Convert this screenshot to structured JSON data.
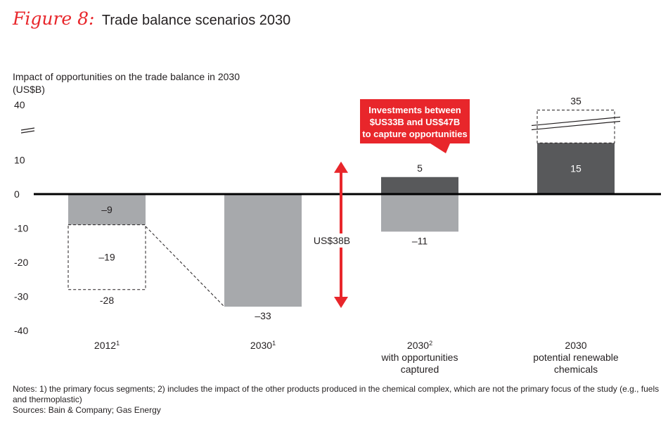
{
  "figure": {
    "label": "Figure 8:",
    "title": "Trade balance scenarios 2030"
  },
  "colors": {
    "light_bar": "#a7a9ac",
    "dark_bar": "#58595b",
    "accent": "#e8262b",
    "axis": "#000000"
  },
  "chart_data": {
    "type": "bar",
    "ylabel": [
      "Impact of opportunities on the trade balance in 2030",
      "(US$B)"
    ],
    "ylim": [
      -40,
      40
    ],
    "y_ticks": [
      "40",
      "10",
      "0",
      "-10",
      "-20",
      "-30",
      "-40"
    ],
    "axis_break": true,
    "categories": [
      {
        "lines": [
          "2012"
        ],
        "sup": "1"
      },
      {
        "lines": [
          "2030"
        ],
        "sup": "1"
      },
      {
        "lines": [
          "2030",
          "with opportunities",
          "captured"
        ],
        "sup": "2"
      },
      {
        "lines": [
          "2030",
          "potential renewable",
          "chemicals"
        ],
        "sup": ""
      }
    ],
    "bars": [
      {
        "category": 0,
        "type": "solid",
        "style": "light",
        "from": 0,
        "to": -9,
        "label": "–9",
        "label_pos": "inside"
      },
      {
        "category": 0,
        "type": "dashed",
        "from": -9,
        "to": -28,
        "label": "–19",
        "label_pos": "inside"
      },
      {
        "category": 0,
        "type": "marker",
        "value": -28,
        "label": "-28",
        "label_pos": "below"
      },
      {
        "category": 1,
        "type": "solid",
        "style": "light",
        "from": 0,
        "to": -33,
        "label": "–33",
        "label_pos": "below"
      },
      {
        "category": 2,
        "type": "solid",
        "style": "dark",
        "from": 0,
        "to": 5,
        "label": "5",
        "label_pos": "above"
      },
      {
        "category": 2,
        "type": "solid",
        "style": "light",
        "from": 0,
        "to": -11,
        "label": "–11",
        "label_pos": "below"
      },
      {
        "category": 3,
        "type": "solid",
        "style": "dark",
        "from": 0,
        "to": 15,
        "label": "15",
        "label_pos": "inside"
      },
      {
        "category": 3,
        "type": "dashed",
        "from": 15,
        "to": 35,
        "label": "35",
        "label_pos": "above",
        "broken": true
      }
    ],
    "range_arrow": {
      "from": 5,
      "to": -33,
      "label": "US$38B"
    },
    "callout": {
      "lines": [
        "Investments between",
        "$US33B and US$47B",
        "to capture opportunities"
      ]
    }
  },
  "notes": {
    "line1": "Notes: 1) the primary focus segments; 2) includes the impact of the other products produced in the chemical complex, which are not the primary focus of the study (e.g., fuels and thermoplastic)",
    "line2": "Sources: Bain & Company; Gas Energy"
  }
}
